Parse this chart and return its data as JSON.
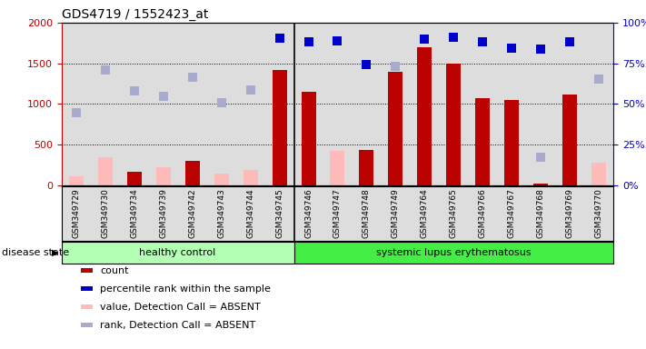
{
  "title": "GDS4719 / 1552423_at",
  "samples": [
    "GSM349729",
    "GSM349730",
    "GSM349734",
    "GSM349739",
    "GSM349742",
    "GSM349743",
    "GSM349744",
    "GSM349745",
    "GSM349746",
    "GSM349747",
    "GSM349748",
    "GSM349749",
    "GSM349764",
    "GSM349765",
    "GSM349766",
    "GSM349767",
    "GSM349768",
    "GSM349769",
    "GSM349770"
  ],
  "count_values": [
    null,
    null,
    160,
    null,
    300,
    null,
    null,
    1420,
    1150,
    null,
    430,
    1390,
    1700,
    1500,
    1070,
    1050,
    20,
    1110,
    null
  ],
  "absent_value_values": [
    110,
    340,
    null,
    220,
    null,
    140,
    190,
    80,
    null,
    420,
    null,
    null,
    null,
    null,
    null,
    null,
    null,
    null,
    280
  ],
  "percentile_rank_values": [
    null,
    null,
    null,
    null,
    null,
    null,
    null,
    1810,
    1760,
    1780,
    1480,
    null,
    1800,
    1820,
    1760,
    1690,
    1680,
    1760,
    null
  ],
  "absent_rank_values": [
    890,
    1420,
    1160,
    1090,
    1330,
    1010,
    1170,
    null,
    null,
    null,
    null,
    1460,
    null,
    null,
    null,
    null,
    340,
    null,
    1310
  ],
  "healthy_count": 8,
  "disease_label": "systemic lupus erythematosus",
  "healthy_label": "healthy control",
  "group1_color": "#b3ffb3",
  "group2_color": "#44ee44",
  "ylim_left": [
    0,
    2000
  ],
  "ylim_right": [
    0,
    100
  ],
  "yticks_left": [
    0,
    500,
    1000,
    1500,
    2000
  ],
  "ytick_labels_right": [
    "0%",
    "25%",
    "50%",
    "75%",
    "100%"
  ],
  "yticks_right": [
    0,
    25,
    50,
    75,
    100
  ],
  "count_color": "#bb0000",
  "absent_value_color": "#ffbbbb",
  "percentile_rank_color": "#0000cc",
  "absent_rank_color": "#aaaacc",
  "dot_size": 48,
  "background_color": "#ffffff",
  "axis_bg": "#dddddd"
}
